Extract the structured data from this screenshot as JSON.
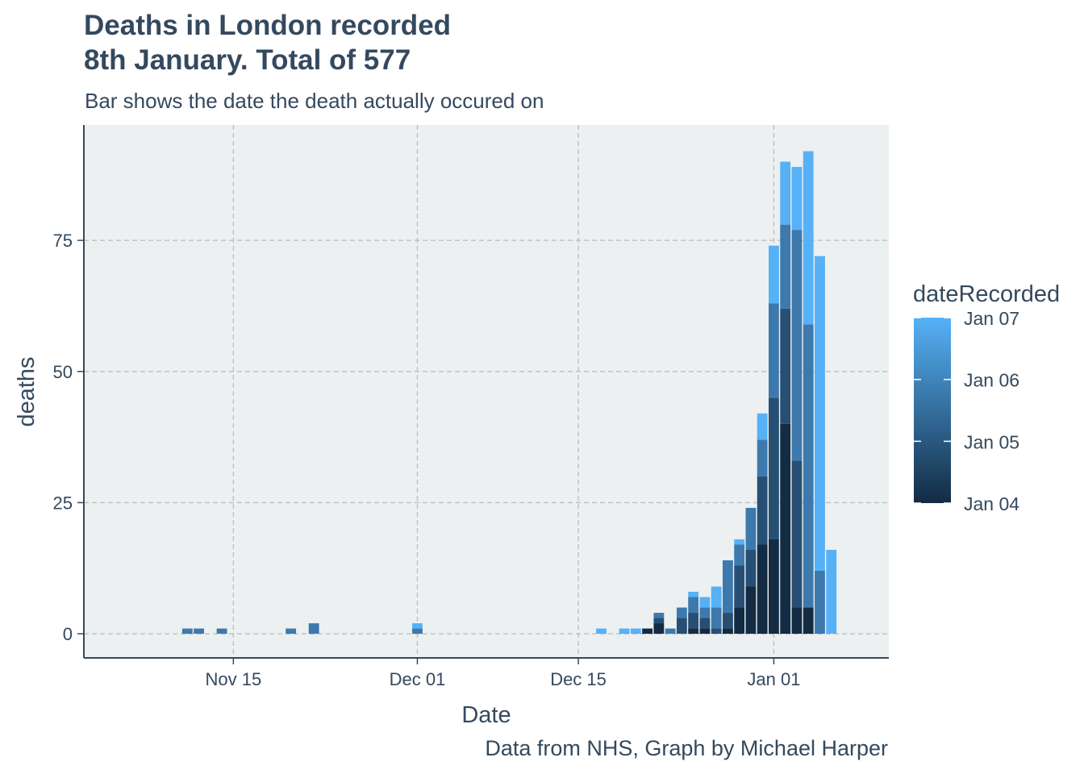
{
  "chart_data": {
    "type": "bar",
    "stacked": true,
    "title_lines": [
      "Deaths in London recorded",
      "8th January. Total of 577"
    ],
    "subtitle": "Bar shows the date the death actually occured on",
    "caption": "Data from NHS, Graph by Michael Harper",
    "xlabel": "Date",
    "ylabel": "deaths",
    "x_range": [
      "2020-11-02",
      "2021-01-11"
    ],
    "ylim": [
      -4.6,
      97.0
    ],
    "x_ticks": [
      {
        "date": "2020-11-15",
        "label": "Nov 15"
      },
      {
        "date": "2020-12-01",
        "label": "Dec 01"
      },
      {
        "date": "2020-12-15",
        "label": "Dec 15"
      },
      {
        "date": "2021-01-01",
        "label": "Jan 01"
      }
    ],
    "y_ticks": [
      0,
      25,
      50,
      75
    ],
    "grid": true,
    "legend": {
      "title": "dateRecorded",
      "placement": "right",
      "entries": [
        "Jan 07",
        "Jan 06",
        "Jan 05",
        "Jan 04"
      ],
      "colors": {
        "Jan 04": "#132b43",
        "Jan 05": "#274f73",
        "Jan 06": "#3d79ad",
        "Jan 07": "#56b1f7"
      }
    },
    "series_order": [
      "Jan 04",
      "Jan 05",
      "Jan 06",
      "Jan 07"
    ],
    "bars": [
      {
        "date": "2020-11-11",
        "values": [
          0,
          0,
          1,
          0
        ]
      },
      {
        "date": "2020-11-12",
        "values": [
          0,
          0,
          1,
          0
        ]
      },
      {
        "date": "2020-11-14",
        "values": [
          0,
          0,
          1,
          0
        ]
      },
      {
        "date": "2020-11-20",
        "values": [
          0,
          0,
          1,
          0
        ]
      },
      {
        "date": "2020-11-22",
        "values": [
          0,
          0,
          2,
          0
        ]
      },
      {
        "date": "2020-12-01",
        "values": [
          0,
          0,
          1,
          1
        ]
      },
      {
        "date": "2020-12-17",
        "values": [
          0,
          0,
          0,
          1
        ]
      },
      {
        "date": "2020-12-19",
        "values": [
          0,
          0,
          0,
          1
        ]
      },
      {
        "date": "2020-12-20",
        "values": [
          0,
          0,
          0,
          1
        ]
      },
      {
        "date": "2020-12-21",
        "values": [
          1,
          0,
          0,
          0
        ]
      },
      {
        "date": "2020-12-22",
        "values": [
          2,
          1,
          1,
          0
        ]
      },
      {
        "date": "2020-12-23",
        "values": [
          0,
          0,
          1,
          0
        ]
      },
      {
        "date": "2020-12-24",
        "values": [
          0,
          3,
          2,
          0
        ]
      },
      {
        "date": "2020-12-25",
        "values": [
          1,
          3,
          3,
          1
        ]
      },
      {
        "date": "2020-12-26",
        "values": [
          1,
          2,
          2,
          2
        ]
      },
      {
        "date": "2020-12-27",
        "values": [
          0,
          1,
          4,
          4
        ]
      },
      {
        "date": "2020-12-28",
        "values": [
          1,
          3,
          10,
          0
        ]
      },
      {
        "date": "2020-12-29",
        "values": [
          5,
          8,
          4,
          1
        ]
      },
      {
        "date": "2020-12-30",
        "values": [
          9,
          7,
          8,
          0
        ]
      },
      {
        "date": "2020-12-31",
        "values": [
          17,
          13,
          7,
          5
        ]
      },
      {
        "date": "2021-01-01",
        "values": [
          18,
          27,
          18,
          11
        ]
      },
      {
        "date": "2021-01-02",
        "values": [
          40,
          22,
          16,
          12
        ]
      },
      {
        "date": "2021-01-03",
        "values": [
          5,
          28,
          44,
          12
        ]
      },
      {
        "date": "2021-01-04",
        "values": [
          5,
          0,
          54,
          33
        ]
      },
      {
        "date": "2021-01-05",
        "values": [
          0,
          0,
          12,
          60
        ]
      },
      {
        "date": "2021-01-06",
        "values": [
          0,
          0,
          0,
          16
        ]
      }
    ]
  }
}
